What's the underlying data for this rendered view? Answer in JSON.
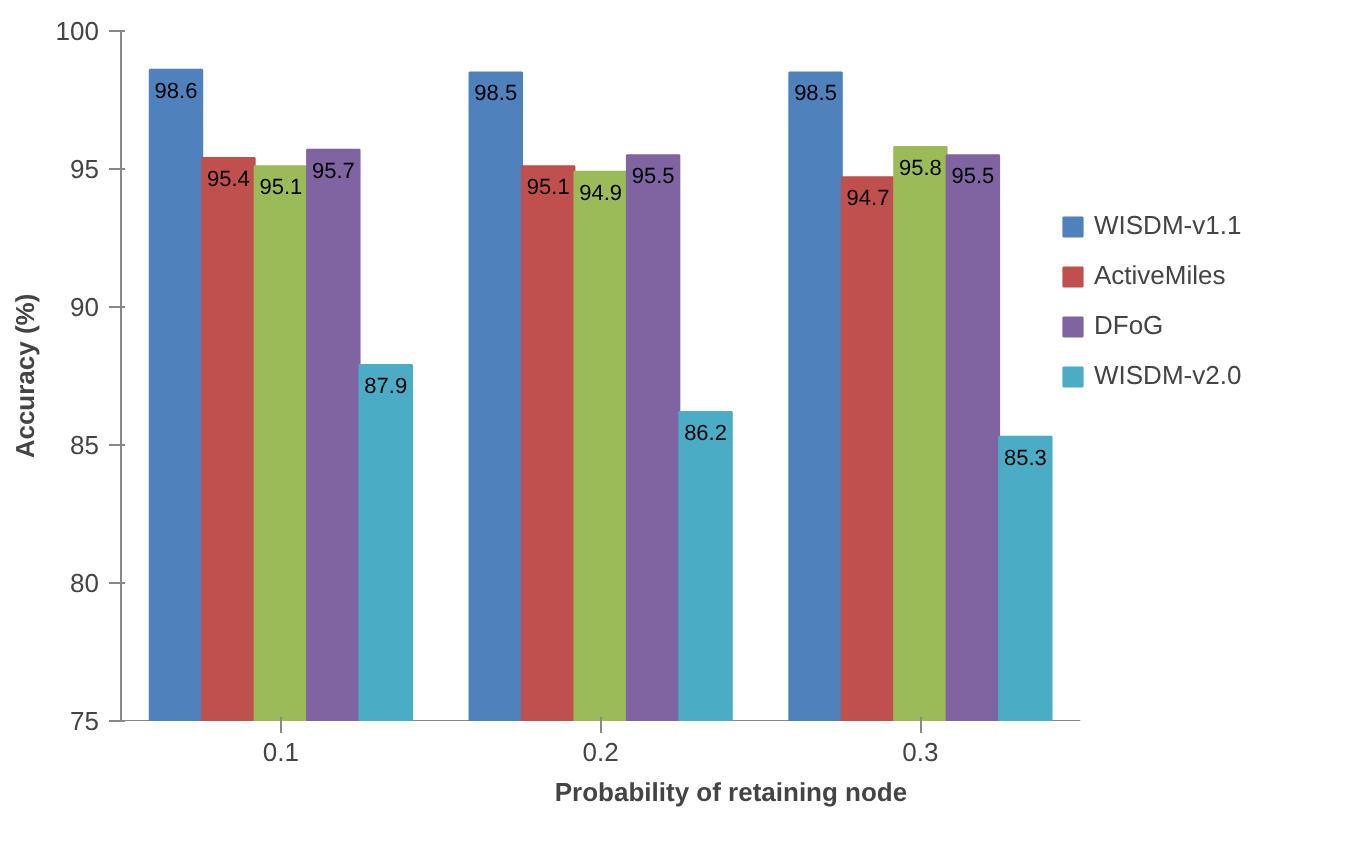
{
  "chart_data": {
    "type": "bar",
    "xlabel": "Probability of retaining node",
    "ylabel": "Accuracy (%)",
    "categories": [
      "0.1",
      "0.2",
      "0.3"
    ],
    "series": [
      {
        "name": "WISDM-v1.1",
        "color": "#4f81bd",
        "values": [
          98.6,
          98.5,
          98.5
        ]
      },
      {
        "name": "ActiveMiles",
        "color": "#c0504d",
        "values": [
          95.4,
          95.1,
          94.7
        ]
      },
      {
        "color": "#9bbb59",
        "values": [
          95.1,
          94.9,
          95.8
        ]
      },
      {
        "name": "DFoG",
        "color": "#8064a2",
        "values": [
          95.7,
          95.5,
          95.5
        ]
      },
      {
        "name": "WISDM-v2.0",
        "color": "#4bacc6",
        "values": [
          87.9,
          86.2,
          85.3
        ]
      }
    ],
    "ylim": [
      75,
      100
    ],
    "yticks": [
      75,
      80,
      85,
      90,
      95,
      100
    ],
    "grid": false,
    "legend": "right",
    "data_labels": true
  }
}
